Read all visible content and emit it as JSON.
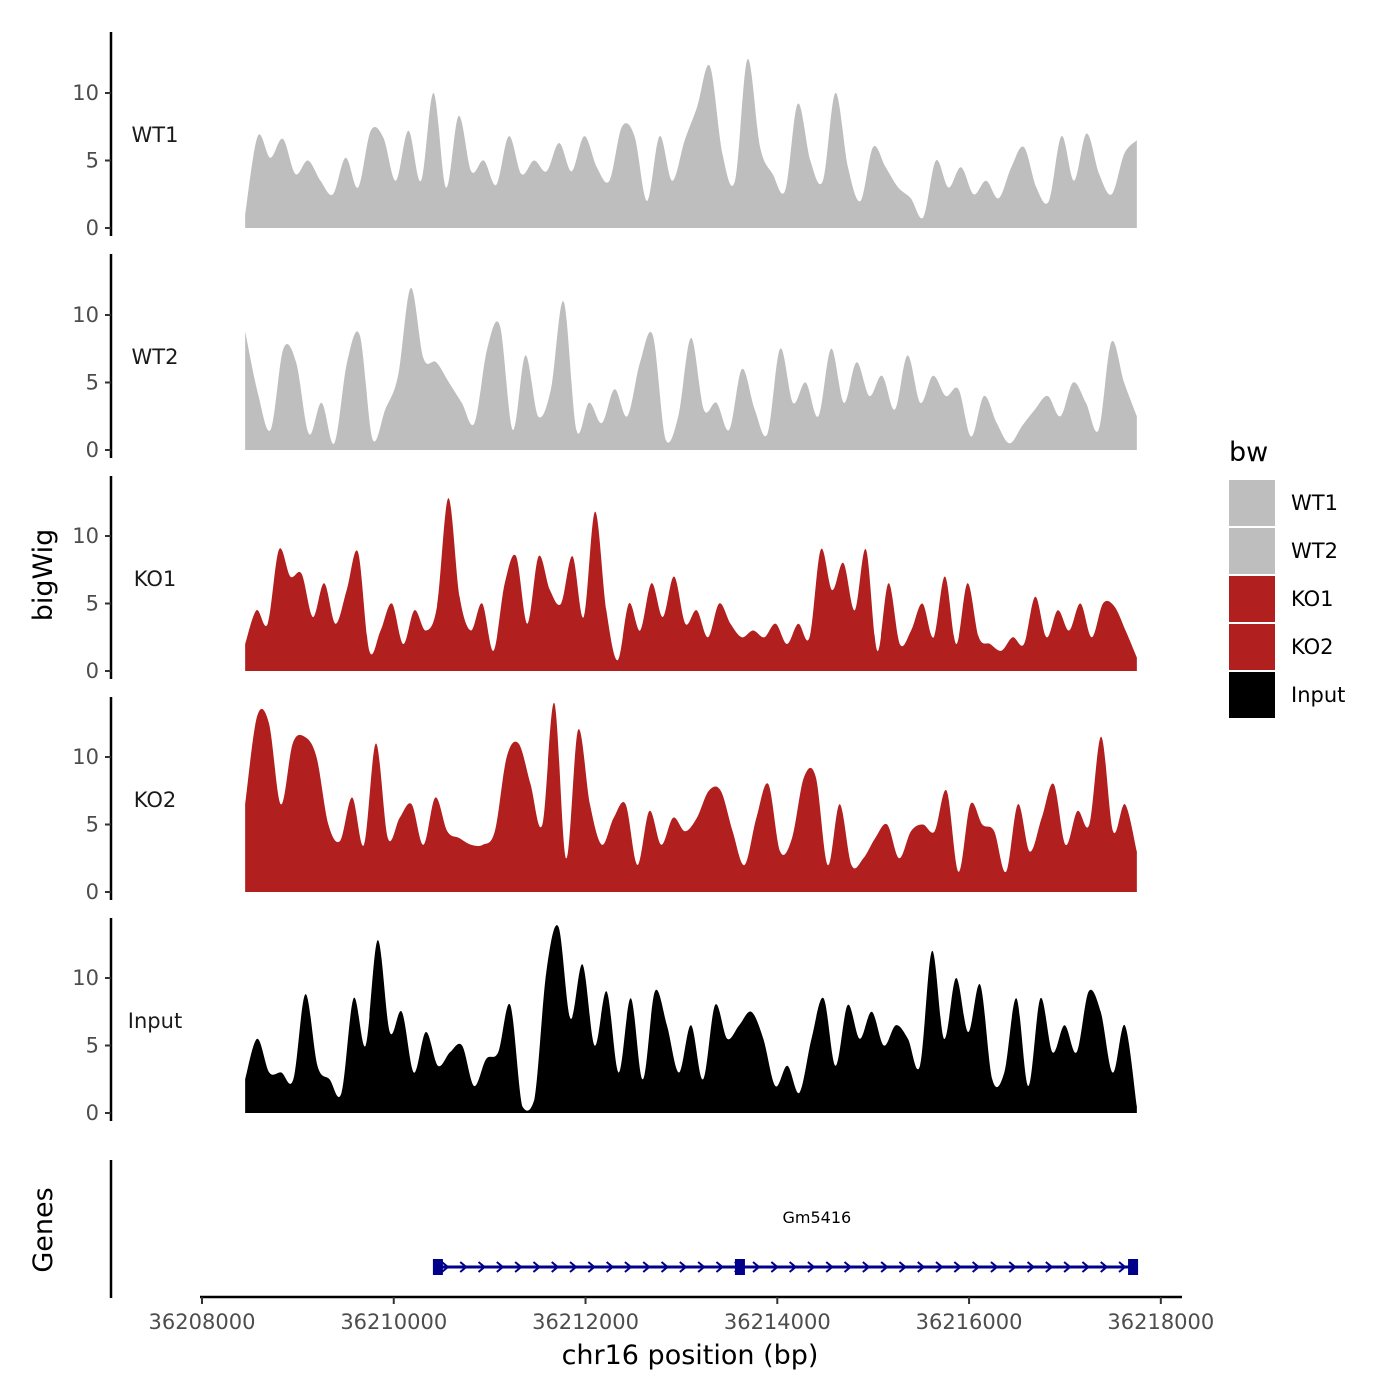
{
  "chart_data": {
    "type": "area",
    "chromosome": "chr16",
    "xlabel": "chr16 position (bp)",
    "ylabel": "bigWig",
    "gene_panel_label": "Genes",
    "xlim": [
      36208000,
      36218200
    ],
    "x_range_data": [
      36208450,
      36217750
    ],
    "x_ticks": [
      36208000,
      36210000,
      36212000,
      36214000,
      36216000,
      36218000
    ],
    "x_tick_labels": [
      "36208000",
      "36210000",
      "36212000",
      "36214000",
      "36216000",
      "36218000"
    ],
    "ylim": [
      0,
      14.5
    ],
    "y_ticks": [
      0,
      5,
      10
    ],
    "y_tick_labels": [
      "0",
      "5",
      "10"
    ],
    "legend": {
      "title": "bw",
      "position": "right",
      "items": [
        {
          "label": "WT1",
          "color": "#bebebe"
        },
        {
          "label": "WT2",
          "color": "#bebebe"
        },
        {
          "label": "KO1",
          "color": "#b21f1f"
        },
        {
          "label": "KO2",
          "color": "#b21f1f"
        },
        {
          "label": "Input",
          "color": "#000000"
        }
      ]
    },
    "series": [
      {
        "name": "WT1",
        "color": "#bebebe",
        "values": [
          1.0,
          6.8,
          5.2,
          6.6,
          4.0,
          5.0,
          3.5,
          2.5,
          5.2,
          3.0,
          7.2,
          6.7,
          3.5,
          7.2,
          3.5,
          10.0,
          3.0,
          8.3,
          4.2,
          5.0,
          3.2,
          6.8,
          4.0,
          5.0,
          4.2,
          6.3,
          4.2,
          6.8,
          4.5,
          3.5,
          7.5,
          6.8,
          2.0,
          6.8,
          3.5,
          6.5,
          9.0,
          12.0,
          5.5,
          3.5,
          12.5,
          6.0,
          4.0,
          2.8,
          9.2,
          5.0,
          3.5,
          10.0,
          4.5,
          2.0,
          6.0,
          4.5,
          3.0,
          2.2,
          0.8,
          5.0,
          3.0,
          4.5,
          2.5,
          3.5,
          2.2,
          4.5,
          6.0,
          3.0,
          2.0,
          6.8,
          3.5,
          7.0,
          4.0,
          2.5,
          5.5,
          6.5
        ]
      },
      {
        "name": "WT2",
        "color": "#bebebe",
        "values": [
          8.8,
          4.2,
          1.5,
          7.5,
          6.5,
          1.2,
          3.5,
          0.5,
          6.5,
          8.5,
          0.8,
          3.0,
          5.5,
          12.0,
          6.8,
          6.5,
          5.0,
          3.5,
          2.0,
          7.5,
          9.2,
          1.5,
          7.0,
          2.5,
          4.5,
          11.0,
          1.5,
          3.5,
          2.0,
          4.5,
          2.5,
          6.5,
          8.5,
          0.8,
          2.5,
          8.3,
          3.0,
          3.5,
          1.5,
          6.0,
          3.0,
          1.2,
          7.5,
          3.5,
          5.0,
          2.5,
          7.5,
          3.5,
          6.5,
          4.0,
          5.5,
          3.0,
          7.0,
          3.5,
          5.5,
          4.0,
          4.5,
          1.0,
          4.0,
          2.0,
          0.5,
          1.8,
          3.0,
          4.0,
          2.5,
          5.0,
          3.5,
          1.5,
          8.0,
          5.0,
          2.5
        ]
      },
      {
        "name": "KO1",
        "color": "#b21f1f",
        "values": [
          2.0,
          4.5,
          3.5,
          9.0,
          7.0,
          7.2,
          4.0,
          6.5,
          3.5,
          6.0,
          8.8,
          1.5,
          3.0,
          5.0,
          2.0,
          4.5,
          3.0,
          4.8,
          12.8,
          5.5,
          3.0,
          5.0,
          1.5,
          6.5,
          8.5,
          3.5,
          8.5,
          6.0,
          5.0,
          8.5,
          4.0,
          11.8,
          4.5,
          0.8,
          5.0,
          3.0,
          6.5,
          4.0,
          7.0,
          3.5,
          4.5,
          2.5,
          5.0,
          3.5,
          2.5,
          3.0,
          2.5,
          3.5,
          2.0,
          3.5,
          2.5,
          9.0,
          6.0,
          8.0,
          4.5,
          9.0,
          1.5,
          6.5,
          2.0,
          3.0,
          5.0,
          2.5,
          7.0,
          2.0,
          6.5,
          2.5,
          2.0,
          1.5,
          2.5,
          2.0,
          5.5,
          2.5,
          4.5,
          3.0,
          5.0,
          2.5,
          5.0,
          4.8,
          3.0,
          1.0
        ]
      },
      {
        "name": "KO2",
        "color": "#b21f1f",
        "values": [
          6.5,
          13.0,
          12.5,
          6.5,
          11.0,
          11.5,
          10.0,
          5.0,
          3.8,
          7.0,
          3.5,
          11.0,
          4.0,
          5.5,
          6.5,
          3.5,
          7.0,
          4.5,
          4.0,
          3.5,
          3.5,
          4.5,
          10.0,
          11.0,
          8.0,
          5.0,
          14.0,
          2.5,
          12.0,
          6.5,
          3.5,
          5.5,
          6.5,
          2.0,
          6.0,
          3.5,
          5.5,
          4.5,
          5.5,
          7.5,
          7.5,
          4.5,
          2.0,
          5.5,
          8.0,
          3.0,
          4.0,
          8.5,
          8.5,
          2.0,
          6.5,
          2.0,
          2.5,
          4.0,
          5.0,
          2.5,
          4.5,
          5.0,
          4.5,
          7.5,
          1.5,
          6.5,
          5.0,
          4.5,
          1.5,
          6.5,
          3.0,
          5.5,
          8.0,
          3.5,
          6.0,
          5.0,
          11.5,
          4.5,
          6.5,
          3.0
        ]
      },
      {
        "name": "Input",
        "color": "#000000",
        "values": [
          2.5,
          5.5,
          3.0,
          3.0,
          2.5,
          8.8,
          3.5,
          2.5,
          1.5,
          8.5,
          5.0,
          12.8,
          6.0,
          7.5,
          3.0,
          6.0,
          3.5,
          4.5,
          5.0,
          2.0,
          4.0,
          4.5,
          8.0,
          0.5,
          1.0,
          10.5,
          13.8,
          7.0,
          11.0,
          5.0,
          9.0,
          3.0,
          8.5,
          2.5,
          9.0,
          6.5,
          3.0,
          6.5,
          2.5,
          8.0,
          5.5,
          6.5,
          7.5,
          5.5,
          2.0,
          3.5,
          1.5,
          5.5,
          8.5,
          3.5,
          8.0,
          5.5,
          7.5,
          5.0,
          6.5,
          5.5,
          3.5,
          12.0,
          5.5,
          10.0,
          6.0,
          9.5,
          2.5,
          3.0,
          8.5,
          2.0,
          8.5,
          4.5,
          6.5,
          4.5,
          9.0,
          7.5,
          3.0,
          6.5,
          0.5
        ]
      }
    ],
    "genes": [
      {
        "name": "Gm5416",
        "start": 36210450,
        "end": 36217750,
        "strand": "+",
        "exons": [
          36210450,
          36213600,
          36217700
        ],
        "color": "#00008b"
      }
    ]
  }
}
